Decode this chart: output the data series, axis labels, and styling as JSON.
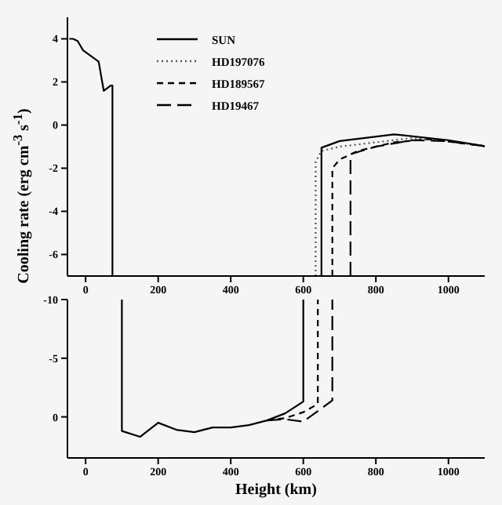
{
  "chart_data": [
    {
      "type": "line",
      "ylabel": "Cooling rate (erg cm$^{-3}$ s$^{-1}$)",
      "xlim": [
        -50,
        1100
      ],
      "xticks": [
        0,
        200,
        400,
        600,
        800,
        1000
      ],
      "ylim": [
        -7,
        5
      ],
      "yticks": [
        -6,
        -4,
        -2,
        0,
        2,
        4
      ],
      "legend": "top left",
      "grid": false,
      "series": [
        {
          "name": "SUN",
          "color": "#000000",
          "line_style": "solid",
          "x": [
            -45,
            -35,
            -22,
            -7,
            36,
            50,
            69,
            74,
            74
          ],
          "values": [
            4.0,
            4.0,
            3.9,
            3.47,
            2.94,
            1.59,
            1.83,
            1.83,
            -7
          ]
        },
        {
          "name": "HD197076",
          "color": "#555555",
          "line_style": "dotted",
          "x": [
            634,
            634,
            650,
            700,
            800,
            900,
            1000,
            1100
          ],
          "values": [
            -7,
            -1.7,
            -1.2,
            -1.0,
            -0.8,
            -0.6,
            -0.75,
            -0.98
          ]
        },
        {
          "name": "HD189567",
          "color": "#000000",
          "line_style": "dashed",
          "x": [
            680,
            680,
            700,
            750,
            850,
            950,
            1100
          ],
          "values": [
            -7,
            -2.0,
            -1.6,
            -1.2,
            -0.8,
            -0.65,
            -0.98
          ]
        },
        {
          "name": "HD19467",
          "color": "#000000",
          "line_style": "dashed",
          "x": [
            730,
            730,
            800,
            900,
            1000,
            1100
          ],
          "values": [
            -7,
            -1.35,
            -1.0,
            -0.7,
            -0.75,
            -0.98
          ]
        },
        {
          "color": "#000000",
          "line_style": "solid",
          "x": [
            650,
            650,
            700,
            850,
            1000,
            1100
          ],
          "values": [
            -7,
            -1.05,
            -0.74,
            -0.43,
            -0.7,
            -0.98
          ]
        }
      ]
    },
    {
      "type": "line",
      "xlabel": "Height (km)",
      "xlim": [
        -50,
        1100
      ],
      "xticks": [
        0,
        200,
        400,
        600,
        800,
        1000
      ],
      "ylim": [
        3.5,
        -10
      ],
      "yticks": [
        -10,
        -5,
        0
      ],
      "grid": false,
      "legend": false,
      "series": [
        {
          "color": "#000000",
          "line_style": "solid",
          "x": [
            100,
            100,
            150,
            200,
            250,
            300,
            350,
            400,
            450,
            500,
            550,
            600,
            600
          ],
          "values": [
            -10,
            1.2,
            1.7,
            0.5,
            1.1,
            1.3,
            0.9,
            0.9,
            0.7,
            0.3,
            -0.3,
            -1.3,
            -10
          ]
        },
        {
          "color": "#000000",
          "line_style": "dashed",
          "x": [
            500,
            550,
            600,
            640,
            640
          ],
          "values": [
            0.3,
            0.1,
            -0.4,
            -1.1,
            -10
          ]
        },
        {
          "color": "#000000",
          "line_style": "dashed",
          "x": [
            500,
            550,
            600,
            680,
            680
          ],
          "values": [
            0.3,
            0.2,
            0.4,
            -1.4,
            -10
          ]
        }
      ]
    }
  ]
}
